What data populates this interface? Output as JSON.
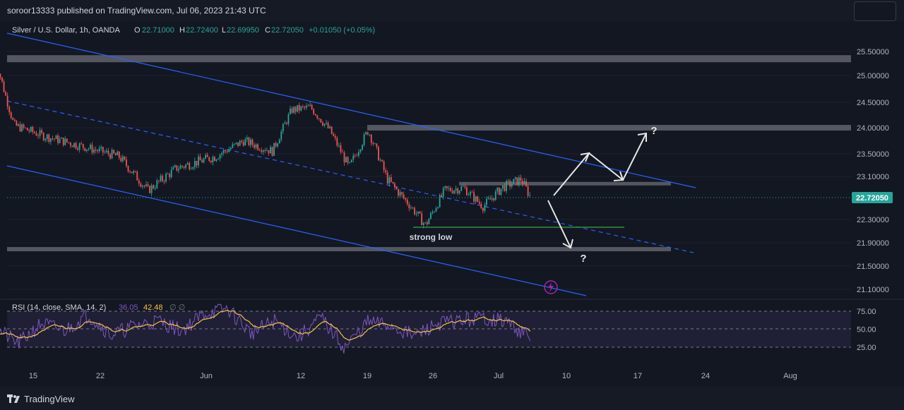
{
  "header": {
    "publisher_line": "soroor13333 published on TradingView.com, Jul 06, 2023 21:43 UTC"
  },
  "legend": {
    "symbol": "Silver / U.S. Dollar, 1h, OANDA",
    "o_label": "O",
    "o_value": "22.71000",
    "h_label": "H",
    "h_value": "22.72400",
    "l_label": "L",
    "l_value": "22.69950",
    "c_label": "C",
    "c_value": "22.72050",
    "change": "+0.01050 (+0.05%)"
  },
  "rsi": {
    "label": "RSI (14, close, SMA, 14, 2)",
    "value1": "36.05",
    "value2": "42.48",
    "extra": "∅  ∅"
  },
  "price_axis": {
    "ticks": [
      "25.50000",
      "25.00000",
      "24.50000",
      "24.00000",
      "23.50000",
      "23.10000",
      "22.30000",
      "21.90000",
      "21.50000",
      "21.10000"
    ],
    "current_price": "22.72050"
  },
  "rsi_axis": {
    "ticks": [
      "75.00",
      "50.00",
      "25.00"
    ]
  },
  "time_axis": {
    "ticks": [
      "15",
      "22",
      "Jun",
      "12",
      "19",
      "26",
      "Jul",
      "10",
      "17",
      "24",
      "Aug"
    ]
  },
  "annotations": {
    "strong_low": "strong low",
    "question_top": "?",
    "question_bottom": "?"
  },
  "branding": {
    "logo_text": "TradingView"
  },
  "colors": {
    "background": "#131722",
    "up": "#26a69a",
    "down": "#ef5350",
    "channel": "#2962ff",
    "zone": "#6b6e75",
    "rsi_line": "#7e57c2",
    "rsi_sma": "#f5c242",
    "price_label_bg": "#26a69a"
  },
  "chart_data": {
    "type": "candlestick",
    "symbol": "Silver / U.S. Dollar",
    "interval": "1h",
    "ylim": [
      21.0,
      25.7
    ],
    "path": {
      "x": [
        "May 11",
        "May 13",
        "May 16",
        "May 20",
        "May 24",
        "May 27",
        "May 30",
        "Jun 3",
        "Jun 6",
        "Jun 9",
        "Jun 11",
        "Jun 13",
        "Jun 15",
        "Jun 17",
        "Jun 19",
        "Jun 21",
        "Jun 23",
        "Jun 25",
        "Jun 27",
        "Jun 29",
        "Jul 1",
        "Jul 3",
        "Jul 5",
        "Jul 6"
      ],
      "close": [
        25.35,
        24.05,
        23.85,
        23.65,
        23.45,
        22.85,
        23.25,
        23.45,
        23.75,
        23.55,
        24.35,
        24.4,
        23.95,
        23.25,
        23.95,
        23.05,
        22.65,
        22.2,
        22.85,
        22.9,
        22.55,
        22.9,
        23.05,
        22.72
      ]
    },
    "rsi": {
      "period": 14,
      "values": [
        52,
        30,
        58,
        48,
        70,
        42,
        55,
        62,
        48,
        72,
        78,
        44,
        62,
        38,
        66,
        24,
        60,
        55,
        40,
        58,
        62,
        66,
        60,
        36
      ],
      "sma_last": 42.48,
      "last": 36.05,
      "levels": [
        70,
        50,
        30
      ]
    },
    "levels": [
      25.35,
      24.0,
      22.97,
      22.16,
      21.79
    ],
    "current_price": 22.7205
  }
}
